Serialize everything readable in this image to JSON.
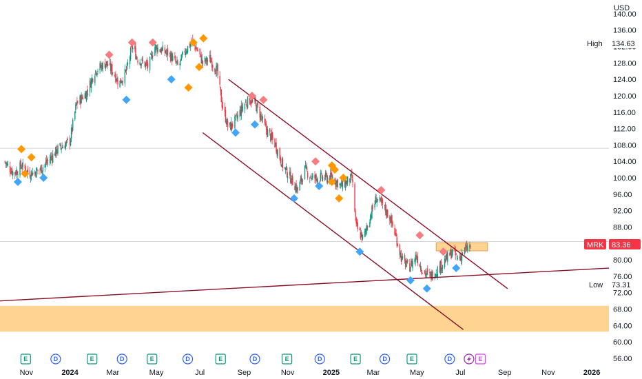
{
  "chart_data": {
    "type": "candlestick",
    "symbol": "MRK",
    "currency": "USD",
    "y_axis": {
      "min": 56,
      "max": 142,
      "ticks": [
        56,
        60,
        64,
        68,
        72,
        76,
        80,
        84,
        88,
        92,
        96,
        100,
        104,
        108,
        112,
        116,
        120,
        124,
        128,
        132,
        136,
        140
      ]
    },
    "x_axis": {
      "labels": [
        {
          "label": "Nov",
          "date": "2023-11-01",
          "bold": false
        },
        {
          "label": "2024",
          "date": "2024-01-01",
          "bold": true
        },
        {
          "label": "Mar",
          "date": "2024-03-01",
          "bold": false
        },
        {
          "label": "May",
          "date": "2024-05-01",
          "bold": false
        },
        {
          "label": "Jul",
          "date": "2024-07-01",
          "bold": false
        },
        {
          "label": "Sep",
          "date": "2024-09-01",
          "bold": false
        },
        {
          "label": "Nov",
          "date": "2024-11-01",
          "bold": false
        },
        {
          "label": "2025",
          "date": "2025-01-01",
          "bold": true
        },
        {
          "label": "Mar",
          "date": "2025-03-01",
          "bold": false
        },
        {
          "label": "May",
          "date": "2025-05-01",
          "bold": false
        },
        {
          "label": "Jul",
          "date": "2025-07-01",
          "bold": false
        },
        {
          "label": "Sep",
          "date": "2025-09-01",
          "bold": false
        },
        {
          "label": "Nov",
          "date": "2025-11-01",
          "bold": false
        },
        {
          "label": "2026",
          "date": "2026-01-01",
          "bold": true
        }
      ]
    },
    "price_anchors": [
      [
        "2023-10-01",
        104
      ],
      [
        "2023-10-15",
        101
      ],
      [
        "2023-10-25",
        103
      ],
      [
        "2023-11-05",
        101
      ],
      [
        "2023-11-20",
        102
      ],
      [
        "2023-12-01",
        104
      ],
      [
        "2023-12-15",
        107
      ],
      [
        "2024-01-01",
        109
      ],
      [
        "2024-01-10",
        118
      ],
      [
        "2024-01-25",
        121
      ],
      [
        "2024-02-05",
        126
      ],
      [
        "2024-02-20",
        128
      ],
      [
        "2024-03-01",
        126
      ],
      [
        "2024-03-10",
        123
      ],
      [
        "2024-03-20",
        126
      ],
      [
        "2024-03-28",
        132
      ],
      [
        "2024-04-05",
        129
      ],
      [
        "2024-04-20",
        127
      ],
      [
        "2024-04-28",
        132
      ],
      [
        "2024-05-10",
        131
      ],
      [
        "2024-05-20",
        130
      ],
      [
        "2024-06-01",
        127
      ],
      [
        "2024-06-10",
        131
      ],
      [
        "2024-06-20",
        133
      ],
      [
        "2024-06-28",
        131
      ],
      [
        "2024-07-05",
        128
      ],
      [
        "2024-07-15",
        129
      ],
      [
        "2024-07-25",
        126
      ],
      [
        "2024-08-01",
        118
      ],
      [
        "2024-08-10",
        112
      ],
      [
        "2024-08-20",
        114
      ],
      [
        "2024-09-01",
        118
      ],
      [
        "2024-09-10",
        119
      ],
      [
        "2024-09-20",
        117
      ],
      [
        "2024-10-01",
        112
      ],
      [
        "2024-10-15",
        108
      ],
      [
        "2024-10-25",
        103
      ],
      [
        "2024-11-05",
        100
      ],
      [
        "2024-11-15",
        97
      ],
      [
        "2024-11-25",
        102
      ],
      [
        "2024-12-05",
        100
      ],
      [
        "2024-12-20",
        100
      ],
      [
        "2025-01-03",
        100
      ],
      [
        "2025-01-15",
        98
      ],
      [
        "2025-01-30",
        100
      ],
      [
        "2025-02-05",
        88
      ],
      [
        "2025-02-15",
        85
      ],
      [
        "2025-02-25",
        91
      ],
      [
        "2025-03-05",
        95
      ],
      [
        "2025-03-15",
        93
      ],
      [
        "2025-03-25",
        90
      ],
      [
        "2025-04-01",
        86
      ],
      [
        "2025-04-10",
        80
      ],
      [
        "2025-04-20",
        78
      ],
      [
        "2025-04-30",
        81
      ],
      [
        "2025-05-10",
        77
      ],
      [
        "2025-05-20",
        76
      ],
      [
        "2025-06-01",
        78
      ],
      [
        "2025-06-10",
        80
      ],
      [
        "2025-06-20",
        82
      ],
      [
        "2025-06-28",
        80
      ],
      [
        "2025-07-05",
        82
      ],
      [
        "2025-07-15",
        83.36
      ]
    ],
    "pivot_markers": [
      {
        "date": "2023-10-25",
        "price": 107,
        "type": "high"
      },
      {
        "date": "2023-11-08",
        "price": 105,
        "type": "high"
      },
      {
        "date": "2023-10-30",
        "price": 101,
        "type": "high"
      },
      {
        "date": "2023-10-20",
        "price": 99,
        "type": "low"
      },
      {
        "date": "2023-11-25",
        "price": 100,
        "type": "low"
      },
      {
        "date": "2024-02-25",
        "price": 130,
        "type": "major-high"
      },
      {
        "date": "2024-03-28",
        "price": 133,
        "type": "major-high"
      },
      {
        "date": "2024-04-26",
        "price": 133,
        "type": "major-high"
      },
      {
        "date": "2024-03-20",
        "price": 119,
        "type": "low"
      },
      {
        "date": "2024-05-22",
        "price": 124,
        "type": "low"
      },
      {
        "date": "2024-06-15",
        "price": 122,
        "type": "high"
      },
      {
        "date": "2024-06-22",
        "price": 133,
        "type": "high"
      },
      {
        "date": "2024-06-30",
        "price": 127,
        "type": "high"
      },
      {
        "date": "2024-07-06",
        "price": 134,
        "type": "high"
      },
      {
        "date": "2024-08-20",
        "price": 111,
        "type": "low"
      },
      {
        "date": "2024-09-12",
        "price": 120,
        "type": "major-high"
      },
      {
        "date": "2024-09-16",
        "price": 113,
        "type": "low"
      },
      {
        "date": "2024-09-28",
        "price": 119,
        "type": "major-high"
      },
      {
        "date": "2024-11-10",
        "price": 95,
        "type": "low"
      },
      {
        "date": "2024-12-10",
        "price": 104,
        "type": "major-high"
      },
      {
        "date": "2024-12-15",
        "price": 98,
        "type": "low"
      },
      {
        "date": "2025-01-02",
        "price": 103,
        "type": "high"
      },
      {
        "date": "2025-01-06",
        "price": 102,
        "type": "high"
      },
      {
        "date": "2025-01-02",
        "price": 99,
        "type": "high"
      },
      {
        "date": "2025-01-12",
        "price": 95,
        "type": "high"
      },
      {
        "date": "2025-01-18",
        "price": 100,
        "type": "high"
      },
      {
        "date": "2025-02-10",
        "price": 82,
        "type": "low"
      },
      {
        "date": "2025-03-12",
        "price": 97,
        "type": "major-high"
      },
      {
        "date": "2025-04-22",
        "price": 75,
        "type": "low"
      },
      {
        "date": "2025-05-05",
        "price": 86,
        "type": "major-high"
      },
      {
        "date": "2025-05-15",
        "price": 73,
        "type": "low"
      },
      {
        "date": "2025-06-07",
        "price": 82,
        "type": "major-high"
      },
      {
        "date": "2025-06-25",
        "price": 78,
        "type": "low"
      }
    ],
    "trendlines": [
      {
        "name": "channel-upper",
        "from": {
          "date": "2024-08-10",
          "price": 124
        },
        "to": {
          "date": "2025-09-05",
          "price": 73
        }
      },
      {
        "name": "channel-lower",
        "from": {
          "date": "2024-07-05",
          "price": 111
        },
        "to": {
          "date": "2025-07-05",
          "price": 63
        }
      },
      {
        "name": "long-support",
        "from": {
          "date": "2023-09-25",
          "price": 70
        },
        "to": {
          "date": "2026-01-25",
          "price": 78
        }
      }
    ],
    "zones": [
      {
        "name": "demand-zone",
        "from_price": 62.5,
        "to_price": 68.8,
        "from_date": "2023-09-25",
        "to_date": "2026-01-25"
      },
      {
        "name": "resistance-box",
        "from_price": 82.2,
        "to_price": 84.2,
        "from_date": "2025-05-28",
        "to_date": "2025-08-08"
      }
    ],
    "reference_lines": [
      {
        "price": 107.2,
        "color": "#d1d4dc"
      },
      {
        "price": 84.5,
        "color": "#d1d4dc"
      }
    ],
    "events": [
      {
        "date": "2023-10-31",
        "letter": "E",
        "kind": "earnings"
      },
      {
        "date": "2023-12-12",
        "letter": "D",
        "kind": "dividend"
      },
      {
        "date": "2024-02-01",
        "letter": "E",
        "kind": "earnings"
      },
      {
        "date": "2024-03-14",
        "letter": "D",
        "kind": "dividend"
      },
      {
        "date": "2024-04-25",
        "letter": "E",
        "kind": "earnings"
      },
      {
        "date": "2024-06-14",
        "letter": "D",
        "kind": "dividend"
      },
      {
        "date": "2024-07-30",
        "letter": "E",
        "kind": "earnings"
      },
      {
        "date": "2024-09-16",
        "letter": "D",
        "kind": "dividend"
      },
      {
        "date": "2024-10-31",
        "letter": "E",
        "kind": "earnings"
      },
      {
        "date": "2024-12-16",
        "letter": "D",
        "kind": "dividend"
      },
      {
        "date": "2025-02-04",
        "letter": "E",
        "kind": "earnings"
      },
      {
        "date": "2025-03-17",
        "letter": "D",
        "kind": "dividend"
      },
      {
        "date": "2025-04-24",
        "letter": "E",
        "kind": "earnings"
      },
      {
        "date": "2025-06-16",
        "letter": "D",
        "kind": "dividend"
      },
      {
        "date": "2025-07-29",
        "letter": "E",
        "kind": "earnings-upcoming"
      }
    ],
    "labels": {
      "high_label": "High",
      "high_value": "134.63",
      "low_label": "Low",
      "low_value": "73.31",
      "last_symbol": "MRK",
      "last_value": "83.36"
    },
    "colors": {
      "up": "#089981",
      "down": "#f23645",
      "major_high_marker": "#f77c80",
      "high_marker": "#ff9800",
      "low_marker": "#42a5f5",
      "trendline": "#880e26",
      "zone": "#ffcc80",
      "last_price_badge": "#f23645",
      "earnings": "#089981",
      "dividend": "#2962ff",
      "split_purple": "#9c27b0",
      "upcoming_earnings": "#e040fb"
    }
  }
}
